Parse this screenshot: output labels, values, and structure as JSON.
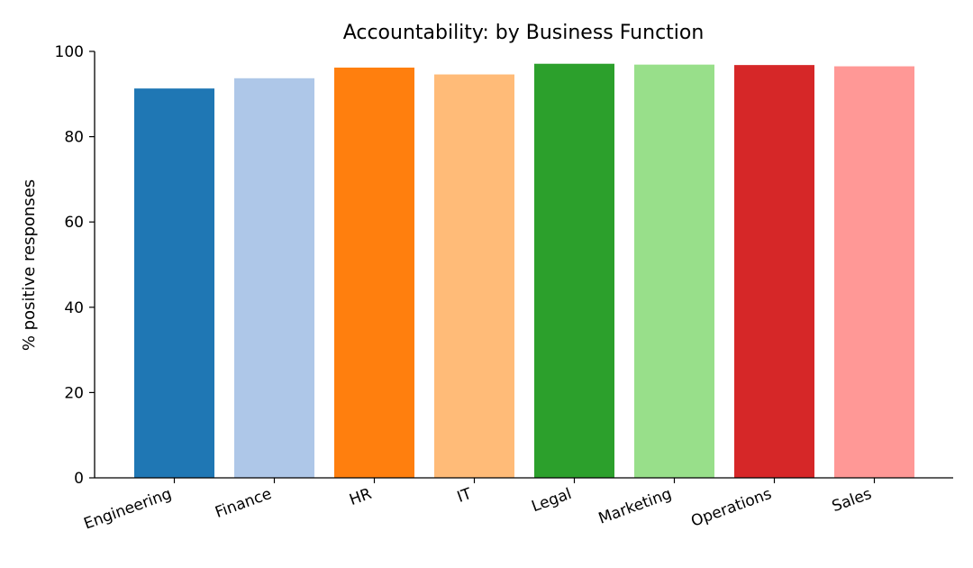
{
  "chart_data": {
    "type": "bar",
    "title": "Accountability: by Business Function",
    "xlabel": "",
    "ylabel": "% positive responses",
    "categories": [
      "Engineering",
      "Finance",
      "HR",
      "IT",
      "Legal",
      "Marketing",
      "Operations",
      "Sales"
    ],
    "values": [
      91.3,
      93.7,
      96.2,
      94.6,
      97.1,
      96.9,
      96.8,
      96.5
    ],
    "colors": [
      "#1f77b4",
      "#aec7e8",
      "#ff7f0e",
      "#ffbb78",
      "#2ca02c",
      "#98df8a",
      "#d62728",
      "#ff9896"
    ],
    "ylim": [
      0,
      100
    ],
    "yticks": [
      0,
      20,
      40,
      60,
      80,
      100
    ],
    "grid": false,
    "legend": "none"
  }
}
